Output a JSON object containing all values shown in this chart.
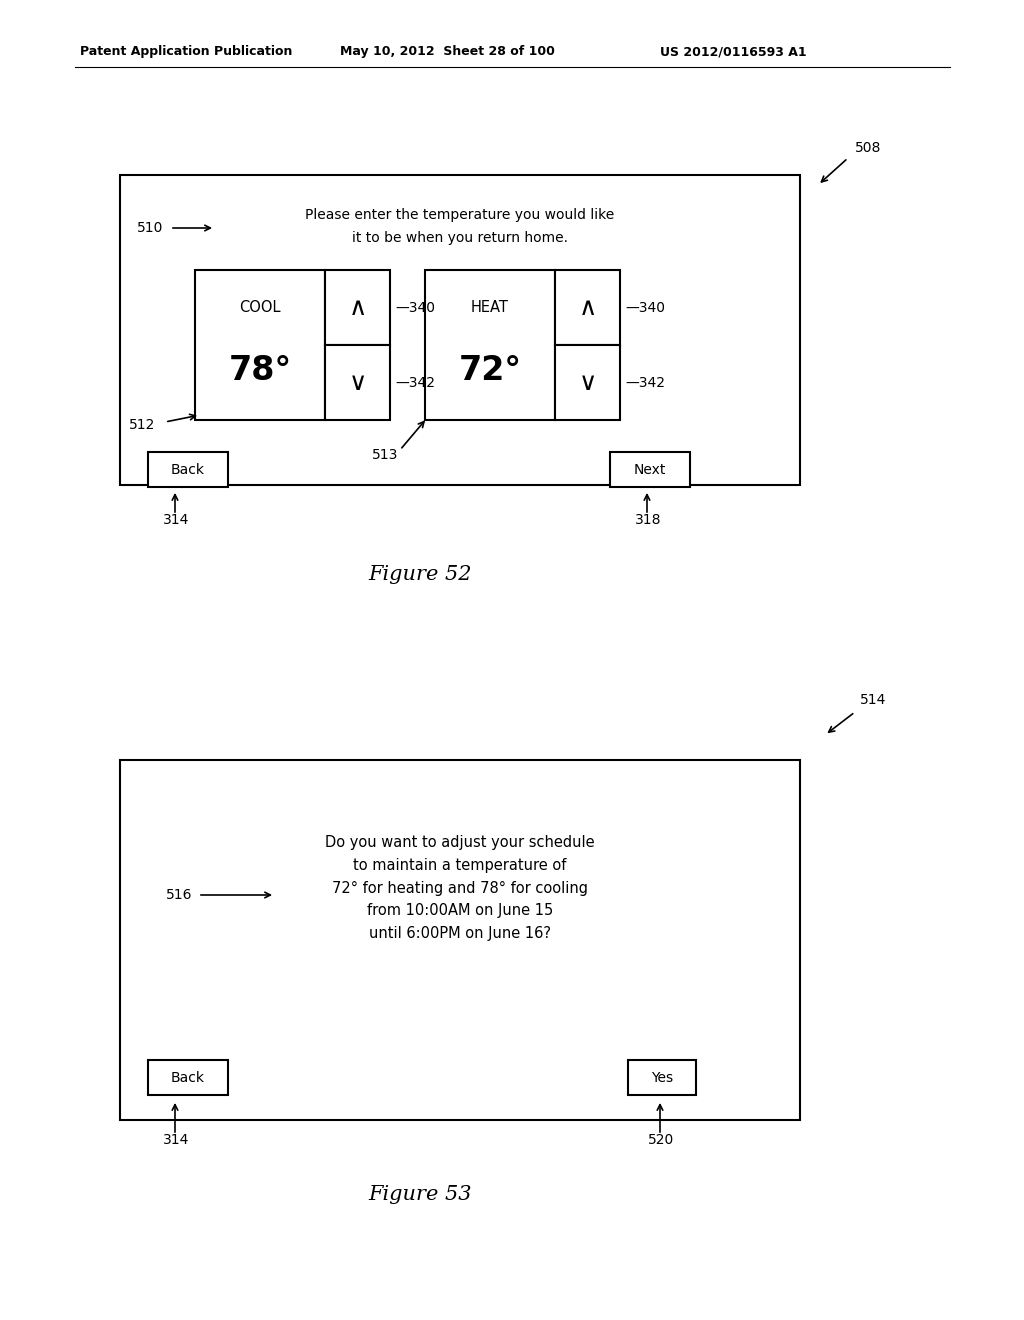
{
  "header_left": "Patent Application Publication",
  "header_mid": "May 10, 2012  Sheet 28 of 100",
  "header_right": "US 2012/0116593 A1",
  "fig52_label": "Figure 52",
  "fig53_label": "Figure 53",
  "fig52": {
    "ref_num": "508",
    "title_line1": "Please enter the temperature you would like",
    "title_line2": "it to be when you return home.",
    "label_510": "510",
    "cool_label": "COOL",
    "cool_temp": "78°",
    "heat_label": "HEAT",
    "heat_temp": "72°",
    "label_340a": "340",
    "label_342a": "342",
    "label_340b": "340",
    "label_342b": "342",
    "label_512": "512",
    "label_513": "513",
    "btn_back": "Back",
    "btn_next": "Next",
    "label_314": "314",
    "label_318": "318"
  },
  "fig53": {
    "ref_num": "514",
    "text_line1": "Do you want to adjust your schedule",
    "text_line2": "to maintain a temperature of",
    "text_line3": "72° for heating and 78° for cooling",
    "text_line4": "from 10:00AM on June 15",
    "text_line5": "until 6:00PM on June 16?",
    "label_516": "516",
    "btn_back": "Back",
    "btn_yes": "Yes",
    "label_314": "314",
    "label_520": "520"
  },
  "bg_color": "#ffffff",
  "text_color": "#000000"
}
